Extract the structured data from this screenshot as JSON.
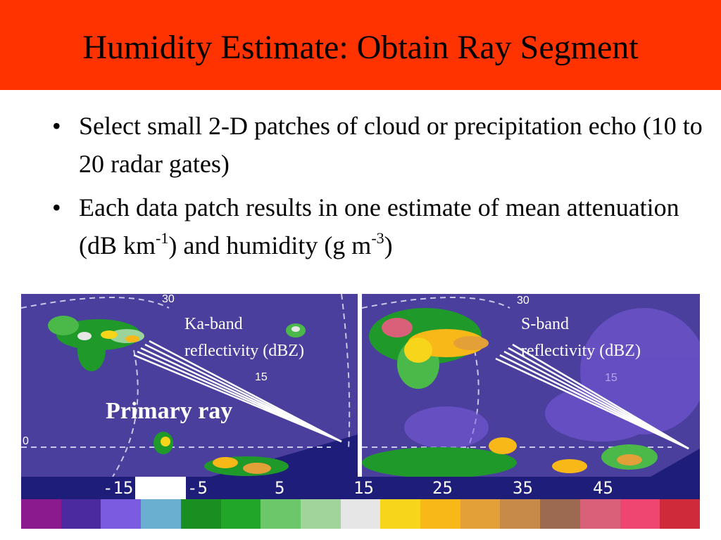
{
  "title": "Humidity Estimate: Obtain Ray Segment",
  "bullets": [
    {
      "text": "Select small 2-D patches of cloud or precipitation echo (10 to 20 radar gates)"
    },
    {
      "pre": "Each data patch results in one estimate of mean attenuation (dB km",
      "sup1": "-1",
      "mid": ") and humidity (g m",
      "sup2": "-3",
      "post": ")"
    }
  ],
  "figure": {
    "ka_label_line1": "Ka-band",
    "ka_label_line2": "reflectivity (dBZ)",
    "s_label_line1": "S-band",
    "s_label_line2": "reflectivity (dBZ)",
    "primary_ray": "Primary ray",
    "range_labels": {
      "r30": "30",
      "r15": "15",
      "r0": "0"
    },
    "scale_ticks": [
      "-15",
      "-5",
      "5",
      "15",
      "25",
      "35",
      "45"
    ],
    "colorscale": [
      "#8b1a8f",
      "#4b2a9f",
      "#7b5ce0",
      "#6aaed0",
      "#188f20",
      "#22a628",
      "#6cc66a",
      "#a0d49a",
      "#e6e6e6",
      "#f7d51a",
      "#f7b818",
      "#e4a038",
      "#c88a48",
      "#9c6a50",
      "#d86078",
      "#ee4670",
      "#cf2a3a"
    ]
  }
}
